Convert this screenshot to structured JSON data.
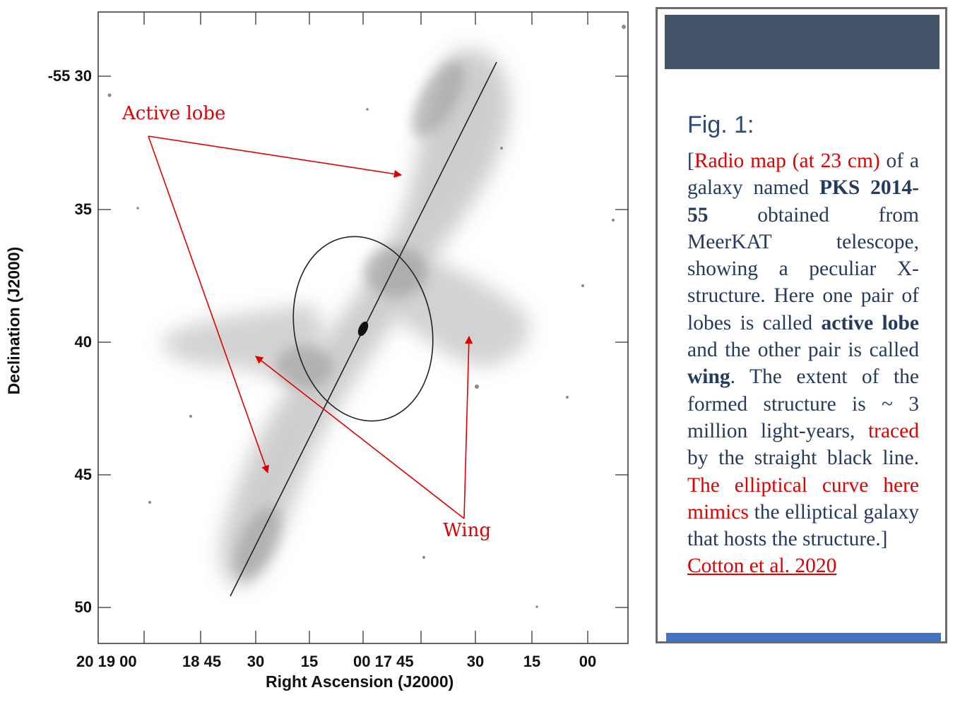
{
  "figure": {
    "y_axis": {
      "title": "Declination (J2000)",
      "ticks": [
        "-55 30",
        "35",
        "40",
        "45",
        "50"
      ]
    },
    "x_axis": {
      "title": "Right Ascension (J2000)",
      "ticks": [
        "20 19 00",
        "18 45",
        "30",
        "15",
        "00 17 45",
        "30",
        "15",
        "00"
      ]
    },
    "annotations": {
      "active_lobe": "Active lobe",
      "wing": "Wing"
    },
    "colors": {
      "annotation": "#e00000",
      "frame": "#333333"
    }
  },
  "caption": {
    "fig_label": "Fig. 1:",
    "p_open": "[",
    "p_red1": "Radio map (at 23 cm)",
    "p_t1": " of a galaxy named ",
    "p_b1": "PKS 2014-55",
    "p_t2": " obtained from MeerKAT telescope, showing a peculiar X-structure. Here one pair of lobes is called ",
    "p_b2": "active lobe",
    "p_t3": " and the other pair is called ",
    "p_b3": "wing",
    "p_t4": ". The extent of the formed structure is ~ 3 million light-years, ",
    "p_red2": "traced",
    "p_t5": " by the straight black line. ",
    "p_red3": "The elliptical curve here mimics",
    "p_t6": " the elliptical galaxy that hosts the structure.]",
    "citation": "Cotton et al. 2020",
    "colors": {
      "header": "#44546a",
      "footer": "#4472c4",
      "text": "#243a5e",
      "highlight": "#e00000"
    }
  }
}
